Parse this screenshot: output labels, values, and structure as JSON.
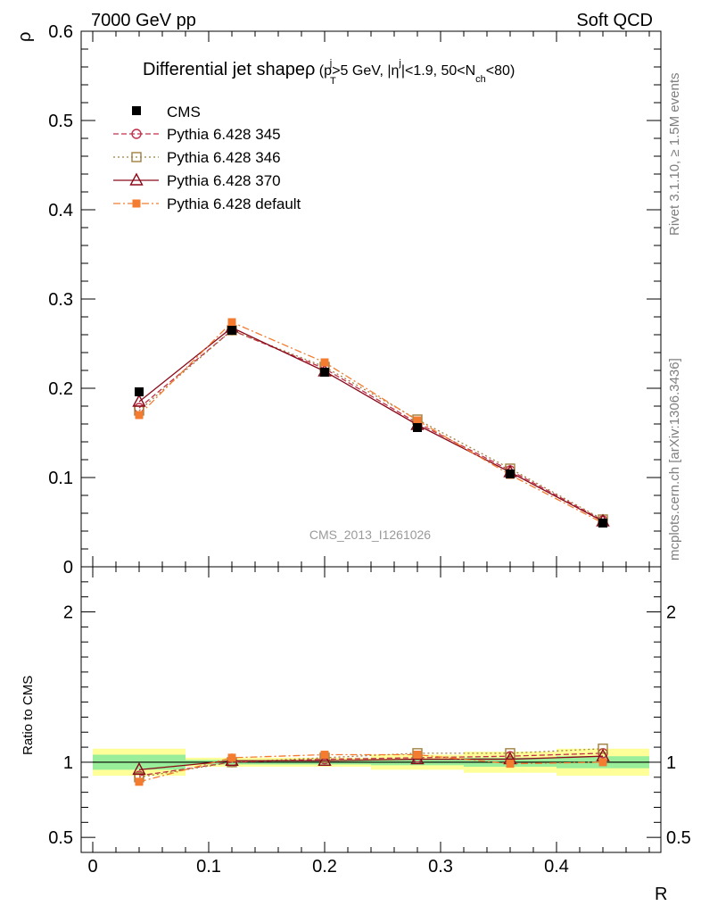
{
  "header": {
    "left": "7000 GeV pp",
    "right": "Soft QCD"
  },
  "side": {
    "rivet": "Rivet 3.1.10, ≥ 1.5M events",
    "mcplots": "mcplots.cern.ch [arXiv:1306.3436]"
  },
  "chart_data": {
    "type": "line",
    "title": "Differential jet shapeρ (p_T^j>5 GeV, |η^j|<1.9, 50<N_ch<80)",
    "title_parts": {
      "main": "Differential jet shapeρ",
      "open": " (p",
      "sub_T": "T",
      "sup_j1": "j",
      "mid1": ">5 GeV, |η",
      "sup_j2": "j",
      "mid2": "|<1.9, 50<N",
      "sub_ch": "ch",
      "close": "<80)"
    },
    "xlabel": "R",
    "ylabel": "ρ",
    "ratio_ylabel": "Ratio to CMS",
    "watermark": "CMS_2013_I1261026",
    "xlim": [
      -0.01,
      0.49
    ],
    "ylim": [
      0,
      0.6
    ],
    "ratio_ylim": [
      0.4,
      2.3
    ],
    "x_ticks": [
      "0",
      "0.1",
      "0.2",
      "0.3",
      "0.4"
    ],
    "y_ticks": [
      "0",
      "0.1",
      "0.2",
      "0.3",
      "0.4",
      "0.5",
      "0.6"
    ],
    "ratio_ticks": [
      "0.5",
      "1",
      "2"
    ],
    "x": [
      0.04,
      0.12,
      0.2,
      0.28,
      0.36,
      0.44
    ],
    "bin_edges": [
      0.0,
      0.08,
      0.16,
      0.24,
      0.32,
      0.4,
      0.48
    ],
    "data": {
      "name": "CMS",
      "values": [
        0.196,
        0.265,
        0.218,
        0.156,
        0.104,
        0.049
      ],
      "ratio_band_inner": [
        0.05,
        0.015,
        0.015,
        0.02,
        0.03,
        0.04
      ],
      "ratio_band_outer": [
        0.09,
        0.03,
        0.03,
        0.05,
        0.07,
        0.09
      ]
    },
    "series": [
      {
        "name": "Pythia 6.428 345",
        "color": "#c0304a",
        "values": [
          0.178,
          0.265,
          0.222,
          0.161,
          0.108,
          0.052
        ],
        "ratios": [
          0.91,
          1.0,
          1.02,
          1.03,
          1.04,
          1.06
        ]
      },
      {
        "name": "Pythia 6.428 346",
        "color": "#a08040",
        "values": [
          0.175,
          0.265,
          0.224,
          0.165,
          0.11,
          0.053
        ],
        "ratios": [
          0.9,
          1.0,
          1.03,
          1.06,
          1.06,
          1.09
        ]
      },
      {
        "name": "Pythia 6.428 370",
        "color": "#8b0a1a",
        "values": [
          0.185,
          0.268,
          0.219,
          0.159,
          0.106,
          0.051
        ],
        "ratios": [
          0.95,
          1.01,
          1.01,
          1.02,
          1.02,
          1.04
        ]
      },
      {
        "name": "Pythia 6.428 default",
        "color": "#f37c30",
        "values": [
          0.17,
          0.274,
          0.229,
          0.164,
          0.103,
          0.049
        ],
        "ratios": [
          0.87,
          1.03,
          1.05,
          1.05,
          0.99,
          1.0
        ]
      }
    ]
  }
}
